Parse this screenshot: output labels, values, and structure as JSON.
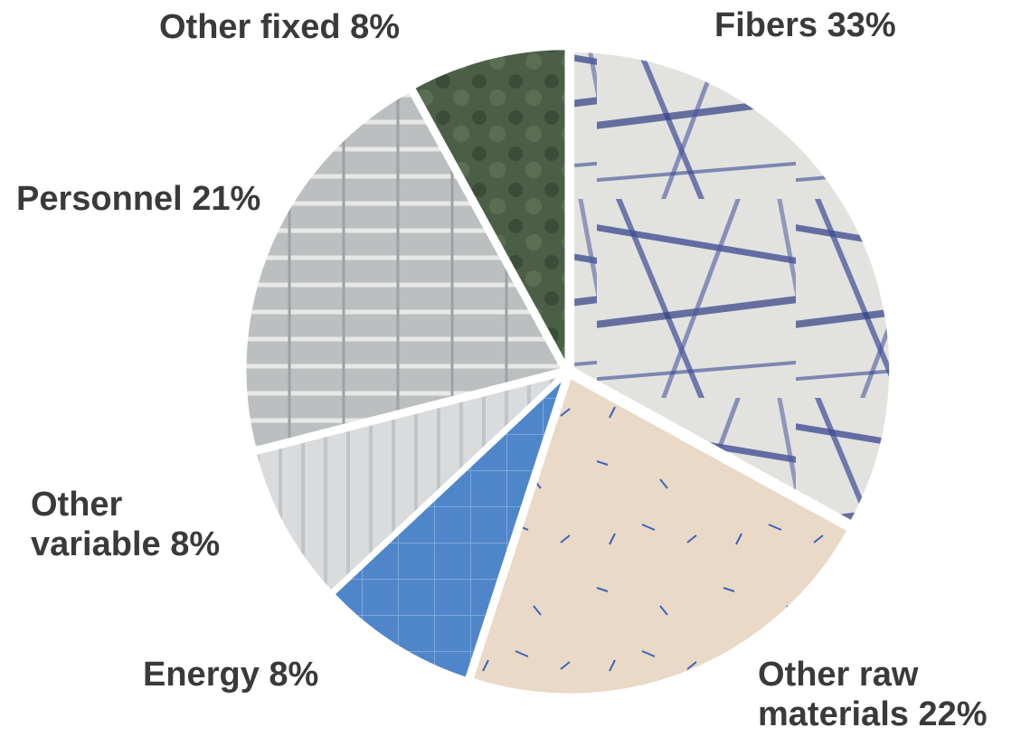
{
  "chart_data": {
    "type": "pie",
    "title": "",
    "start_angle_deg": 0,
    "direction": "clockwise",
    "legend": "none",
    "slices": [
      {
        "label_lines": [
          "Fibers 33%"
        ],
        "value": 33,
        "color": "#e3e3de",
        "texture": "fibers",
        "icon": "microscope-fibers-image"
      },
      {
        "label_lines": [
          "Other raw",
          "materials 22%"
        ],
        "value": 22,
        "color": "#e9d9c8",
        "texture": "blue-fiber-tuft",
        "icon": "blue-fiber-tuft-image"
      },
      {
        "label_lines": [
          "Energy 8%"
        ],
        "value": 8,
        "color": "#4f86c9",
        "texture": "solar-sky",
        "icon": "solar-panel-image"
      },
      {
        "label_lines": [
          "Other",
          "variable 8%"
        ],
        "value": 8,
        "color": "#d7d9da",
        "texture": "lab",
        "icon": "laboratory-image"
      },
      {
        "label_lines": [
          "Personnel 21%"
        ],
        "value": 21,
        "color": "#b9bcbd",
        "texture": "factory",
        "icon": "factory-workers-image"
      },
      {
        "label_lines": [
          "Other fixed 8%"
        ],
        "value": 8,
        "color": "#4d5f4a",
        "texture": "town",
        "icon": "town-aerial-image"
      }
    ]
  }
}
